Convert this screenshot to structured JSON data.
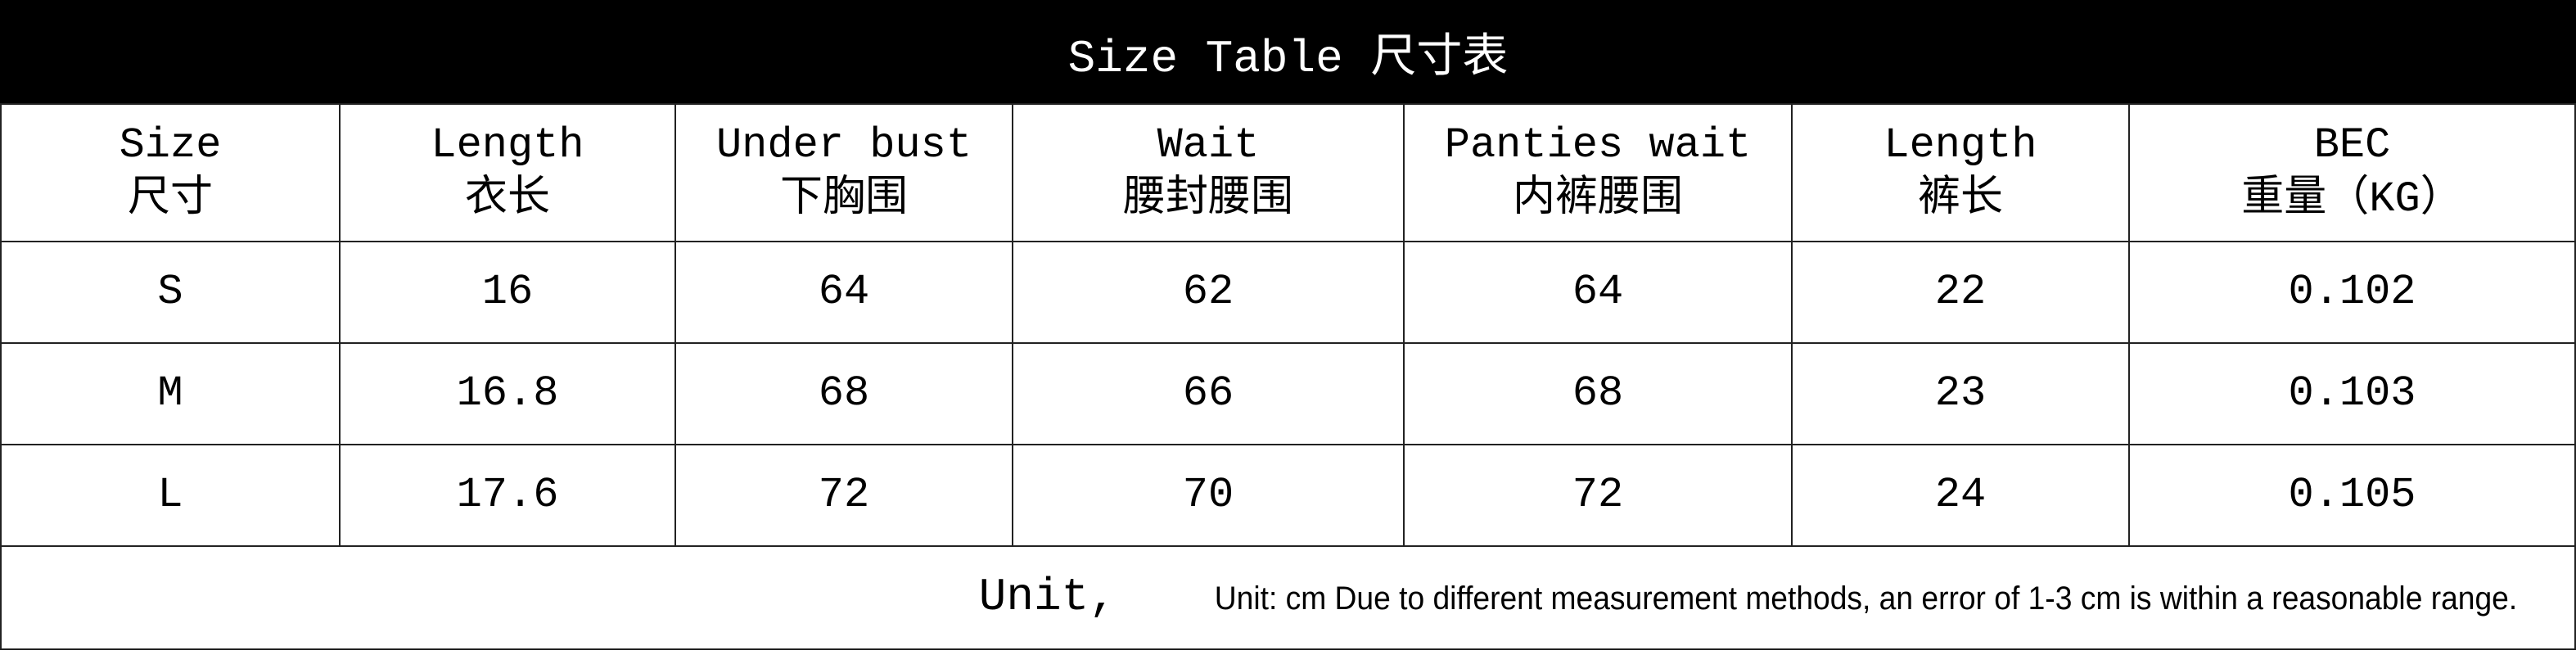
{
  "title": "Size Table 尺寸表",
  "headers": [
    {
      "en": "Size",
      "zh": "尺寸"
    },
    {
      "en": "Length",
      "zh": "衣长"
    },
    {
      "en": "Under bust",
      "zh": "下胸围"
    },
    {
      "en": "Wait",
      "zh": "腰封腰围"
    },
    {
      "en": "Panties wait",
      "zh": "内裤腰围"
    },
    {
      "en": "Length",
      "zh": "裤长"
    },
    {
      "en": "BEC",
      "zh": "重量（KG）"
    }
  ],
  "rows": [
    [
      "S",
      "16",
      "64",
      "62",
      "64",
      "22",
      "0.102"
    ],
    [
      "M",
      "16.8",
      "68",
      "66",
      "68",
      "23",
      "0.103"
    ],
    [
      "L",
      "17.6",
      "72",
      "70",
      "72",
      "24",
      "0.105"
    ]
  ],
  "footer": {
    "unit_label": "Unit,",
    "note": "Unit: cm Due to different measurement methods, an error of 1-3 cm is within a reasonable range."
  }
}
